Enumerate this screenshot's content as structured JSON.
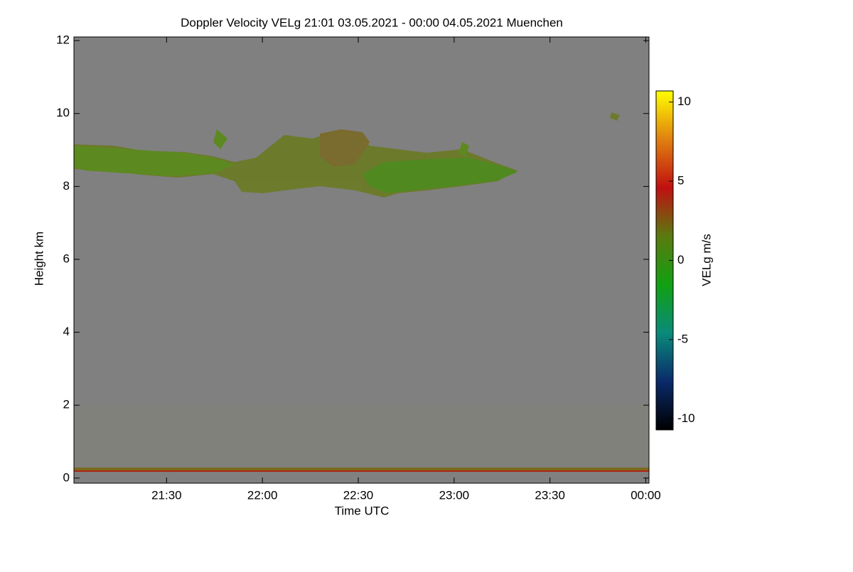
{
  "chart_data": {
    "type": "heatmap",
    "title": "Doppler Velocity VELg   21:01 03.05.2021 - 00:00 04.05.2021 Muenchen",
    "x_label": "Time UTC",
    "y_label": "Height km",
    "xlim": [
      1,
      181
    ],
    "xticks": [
      {
        "value": 30,
        "label": "21:30"
      },
      {
        "value": 60,
        "label": "22:00"
      },
      {
        "value": 90,
        "label": "22:30"
      },
      {
        "value": 120,
        "label": "23:00"
      },
      {
        "value": 150,
        "label": "23:30"
      },
      {
        "value": 180,
        "label": "00:00"
      }
    ],
    "ylim": [
      -0.14,
      12.1
    ],
    "yticks": [
      0,
      2,
      4,
      6,
      8,
      10,
      12
    ],
    "colorbar": {
      "label": "VELg m/s",
      "lim": [
        -10.7,
        10.7
      ],
      "ticks": [
        -10,
        -5,
        0,
        5,
        10
      ],
      "colors": [
        "#000000",
        "#0a2a6a",
        "#0a8a7a",
        "#12a012",
        "#5a7a10",
        "#c01010",
        "#e08010",
        "#ffff00"
      ]
    },
    "background": "#808080"
  }
}
